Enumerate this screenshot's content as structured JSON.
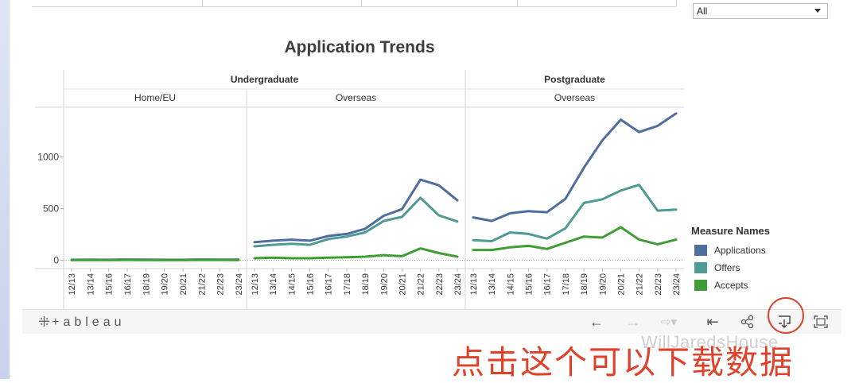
{
  "filter": {
    "value": "All"
  },
  "legend": {
    "title": "Measure Names",
    "items": [
      {
        "label": "Applications",
        "color": "#4e6e9e"
      },
      {
        "label": "Offers",
        "color": "#4f9a94"
      },
      {
        "label": "Accepts",
        "color": "#3f9d35"
      }
    ]
  },
  "toolbar": {
    "logo": "+ableau",
    "icons": [
      "undo-icon",
      "redo-icon",
      "revert-icon",
      "reset-icon",
      "share-icon",
      "download-icon",
      "fullscreen-icon"
    ]
  },
  "watermark": "WillJaredsHouse",
  "annotation": "点击这个可以下载数据",
  "chart_data": {
    "type": "line",
    "title": "Application Trends",
    "ylabel": "",
    "ylim": [
      -80,
      1480
    ],
    "yticks": [
      0,
      500,
      1000
    ],
    "groups": [
      {
        "name": "Undergraduate",
        "panels": [
          "Home/EU",
          "Overseas"
        ]
      },
      {
        "name": "Postgraduate",
        "panels": [
          "Overseas"
        ]
      }
    ],
    "panels": [
      {
        "name": "Home/EU",
        "categories": [
          "12/13",
          "13/14",
          "15/16",
          "16/17",
          "18/19",
          "19/20",
          "20/21",
          "21/22",
          "22/23",
          "23/24"
        ],
        "series": [
          {
            "name": "Applications",
            "values": [
              5,
              6,
              5,
              8,
              6,
              5,
              5,
              8,
              7,
              6
            ]
          },
          {
            "name": "Offers",
            "values": [
              4,
              5,
              4,
              6,
              5,
              4,
              4,
              6,
              5,
              5
            ]
          },
          {
            "name": "Accepts",
            "values": [
              3,
              3,
              3,
              4,
              3,
              3,
              3,
              4,
              4,
              3
            ]
          }
        ]
      },
      {
        "name": "Overseas",
        "categories": [
          "12/13",
          "13/14",
          "14/15",
          "15/16",
          "16/17",
          "17/18",
          "18/19",
          "19/20",
          "20/21",
          "21/22",
          "22/23",
          "23/24"
        ],
        "series": [
          {
            "name": "Applications",
            "values": [
              175,
              190,
              200,
              190,
              235,
              255,
              305,
              430,
              495,
              780,
              725,
              580
            ]
          },
          {
            "name": "Offers",
            "values": [
              135,
              150,
              160,
              150,
              205,
              230,
              270,
              380,
              420,
              605,
              435,
              375
            ]
          },
          {
            "name": "Accepts",
            "values": [
              20,
              25,
              20,
              20,
              25,
              30,
              35,
              50,
              40,
              115,
              70,
              35
            ]
          }
        ]
      },
      {
        "name": "Overseas",
        "categories": [
          "12/13",
          "13/14",
          "14/15",
          "15/16",
          "16/17",
          "17/18",
          "18/19",
          "19/20",
          "20/21",
          "21/22",
          "22/23",
          "23/24"
        ],
        "series": [
          {
            "name": "Applications",
            "values": [
              415,
              380,
              455,
              475,
              465,
              595,
              895,
              1160,
              1360,
              1240,
              1300,
              1420
            ]
          },
          {
            "name": "Offers",
            "values": [
              195,
              185,
              270,
              255,
              210,
              310,
              555,
              590,
              675,
              730,
              480,
              490
            ]
          },
          {
            "name": "Accepts",
            "values": [
              100,
              100,
              125,
              140,
              110,
              170,
              230,
              220,
              320,
              200,
              155,
              200
            ]
          }
        ]
      }
    ]
  }
}
